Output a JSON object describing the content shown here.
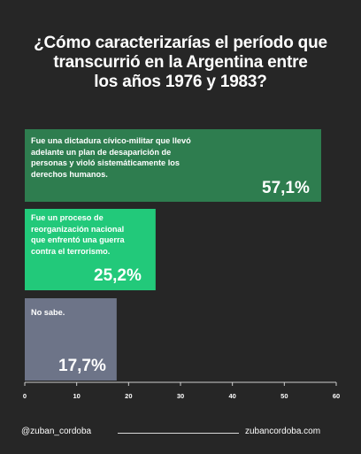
{
  "title_lines": [
    "¿Cómo caracterizarías el período que",
    "transcurrió en la Argentina entre",
    "los años 1976 y 1983?"
  ],
  "chart_data": {
    "type": "bar",
    "orientation": "horizontal",
    "title": "¿Cómo caracterizarías el período que transcurrió en la Argentina entre los años 1976 y 1983?",
    "categories": [
      "Fue una dictadura cívico-militar que llevó adelante un plan de desaparición de personas y violó sistemáticamente los derechos humanos.",
      "Fue un proceso de reorganización nacional que enfrentó una guerra contra el terrorismo.",
      "No sabe."
    ],
    "values": [
      57.1,
      25.2,
      17.7
    ],
    "value_labels": [
      "57,1%",
      "25,2%",
      "17,7%"
    ],
    "colors": [
      "#2e7d4f",
      "#22c97a",
      "#6d7488"
    ],
    "xlim": [
      0,
      60
    ],
    "x_ticks": [
      0,
      10,
      20,
      30,
      40,
      50,
      60
    ],
    "grid": false
  },
  "bars": [
    {
      "lines": [
        "Fue una dictadura cívico-militar que llevó",
        "adelante un plan de desaparición de",
        "personas y violó sistemáticamente los",
        "derechos humanos."
      ],
      "value_label": "57,1%"
    },
    {
      "lines": [
        "Fue un proceso de",
        "reorganización nacional",
        "que enfrentó una guerra",
        "contra el terrorismo."
      ],
      "value_label": "25,2%"
    },
    {
      "lines": [
        "No sabe."
      ],
      "value_label": "17,7%"
    }
  ],
  "footer": {
    "handle": "@zuban_cordoba",
    "website": "zubancordoba.com"
  }
}
